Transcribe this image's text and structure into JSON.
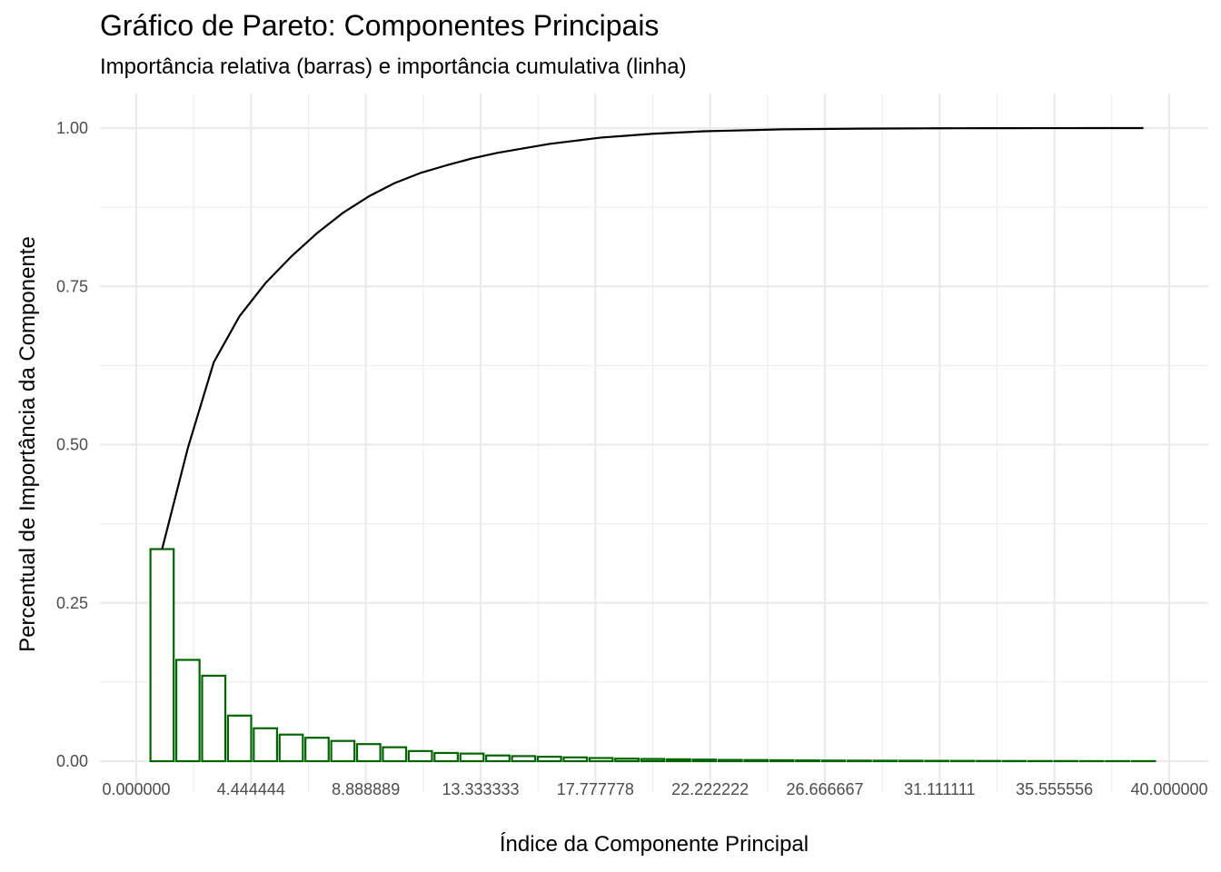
{
  "chart_data": {
    "type": "bar",
    "title": "Gráfico de Pareto: Componentes Principais",
    "subtitle": "Importância relativa (barras) e importância cumulativa (linha)",
    "xlabel": "Índice da Componente Principal",
    "ylabel": "Percentual de Importância da Componente",
    "xlim": [
      0,
      40
    ],
    "ylim": [
      0,
      1
    ],
    "x_ticks": [
      0.0,
      4.444444,
      8.888889,
      13.333333,
      17.777778,
      22.222222,
      26.666667,
      31.111111,
      35.555556,
      40.0
    ],
    "x_tick_labels": [
      "0.000000",
      "4.444444",
      "8.888889",
      "13.333333",
      "17.777778",
      "22.222222",
      "26.666667",
      "31.111111",
      "35.555556",
      "40.000000"
    ],
    "y_ticks": [
      0.0,
      0.25,
      0.5,
      0.75,
      1.0
    ],
    "y_tick_labels": [
      "0.00",
      "0.25",
      "0.50",
      "0.75",
      "1.00"
    ],
    "grid": true,
    "colors": {
      "bars": "#006400",
      "line": "#000000",
      "grid": "#ebebeb"
    },
    "series": [
      {
        "type": "bar",
        "x": [
          1,
          2,
          3,
          4,
          5,
          6,
          7,
          8,
          9,
          10,
          11,
          12,
          13,
          14,
          15,
          16,
          17,
          18,
          19,
          20,
          21,
          22,
          23,
          24,
          25,
          26,
          27,
          28,
          29,
          30,
          31,
          32,
          33,
          34,
          35,
          36,
          37,
          38,
          39
        ],
        "values": [
          0.335,
          0.16,
          0.135,
          0.072,
          0.052,
          0.042,
          0.037,
          0.032,
          0.027,
          0.022,
          0.016,
          0.013,
          0.012,
          0.009,
          0.008,
          0.007,
          0.006,
          0.005,
          0.004,
          0.0035,
          0.003,
          0.0025,
          0.002,
          0.0018,
          0.0015,
          0.0012,
          0.001,
          0.0009,
          0.0008,
          0.0007,
          0.0006,
          0.0005,
          0.0004,
          0.0003,
          0.0002,
          0.0002,
          0.0001,
          0.0001,
          0.0001
        ]
      },
      {
        "type": "line",
        "x": [
          1,
          2,
          3,
          4,
          5,
          6,
          7,
          8,
          9,
          10,
          11,
          12,
          13,
          14,
          15,
          16,
          17,
          18,
          19,
          20,
          21,
          22,
          23,
          24,
          25,
          26,
          27,
          28,
          29,
          30,
          31,
          32,
          33,
          34,
          35,
          36,
          37,
          38,
          39
        ],
        "values": [
          0.335,
          0.495,
          0.63,
          0.703,
          0.755,
          0.797,
          0.834,
          0.866,
          0.892,
          0.913,
          0.929,
          0.941,
          0.952,
          0.961,
          0.968,
          0.975,
          0.98,
          0.985,
          0.988,
          0.991,
          0.993,
          0.995,
          0.996,
          0.997,
          0.998,
          0.9984,
          0.9988,
          0.9991,
          0.9993,
          0.9995,
          0.9996,
          0.9997,
          0.9998,
          0.99985,
          0.9999,
          0.99993,
          0.99996,
          0.99998,
          1.0
        ]
      }
    ]
  }
}
